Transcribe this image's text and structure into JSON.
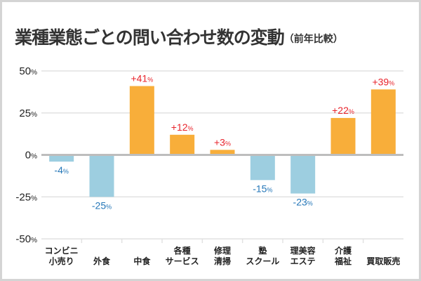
{
  "title": {
    "main": "業種業態ごとの問い合わせ数の変動",
    "sub": "（前年比較）"
  },
  "colors": {
    "positive_bar": "#f8ae3a",
    "negative_bar": "#9dcee0",
    "positive_label": "#e8242c",
    "negative_label": "#2577b8",
    "grid": "#e2e2e2",
    "zero_line": "#bdbdbd"
  },
  "chart_data": {
    "type": "bar",
    "title": "業種業態ごとの問い合わせ数の変動（前年比較）",
    "xlabel": "",
    "ylabel": "",
    "ylim": [
      -50,
      50
    ],
    "yticks": [
      50,
      25,
      0,
      -25,
      -50
    ],
    "ytick_labels": [
      "50%",
      "25%",
      "0%",
      "-25%",
      "-50%"
    ],
    "grid": true,
    "categories": [
      [
        "コンビニ",
        "小売り"
      ],
      [
        "外食"
      ],
      [
        "中食"
      ],
      [
        "各種",
        "サービス"
      ],
      [
        "修理",
        "清掃"
      ],
      [
        "塾",
        "スクール"
      ],
      [
        "理美容",
        "エステ"
      ],
      [
        "介護",
        "福祉"
      ],
      [
        "買取販売"
      ]
    ],
    "values": [
      -4,
      -25,
      41,
      12,
      3,
      -15,
      -23,
      22,
      39
    ],
    "value_labels": [
      "-4",
      "-25",
      "+41",
      "+12",
      "+3",
      "-15",
      "-23",
      "+22",
      "+39"
    ],
    "value_suffix": "%"
  }
}
